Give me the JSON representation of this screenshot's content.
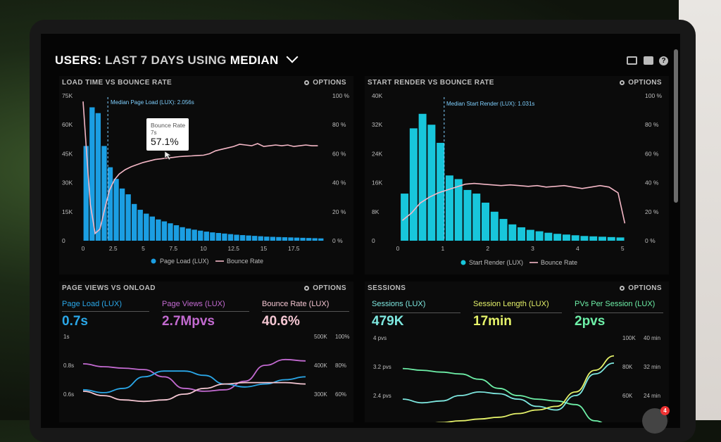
{
  "header": {
    "title_prefix": "USERS:",
    "title_middle": "LAST 7 DAYS USING",
    "title_suffix": "MEDIAN"
  },
  "toolbar": {
    "icons": [
      "monitor-icon",
      "share-icon",
      "help-icon"
    ],
    "help_glyph": "?"
  },
  "panels": {
    "load": {
      "title": "LOAD TIME VS BOUNCE RATE",
      "options": "OPTIONS",
      "median_label": "Median Page Load (LUX): 2.056s",
      "tooltip_label": "Bounce Rate",
      "tooltip_sub": "7s",
      "tooltip_value": "57.1%",
      "legend": [
        "Page Load (LUX)",
        "Bounce Rate"
      ]
    },
    "render": {
      "title": "START RENDER VS BOUNCE RATE",
      "options": "OPTIONS",
      "median_label": "Median Start Render (LUX): 1.031s",
      "legend": [
        "Start Render (LUX)",
        "Bounce Rate"
      ]
    },
    "pageviews": {
      "title": "PAGE VIEWS VS ONLOAD",
      "options": "OPTIONS",
      "metrics": [
        {
          "label": "Page Load (LUX)",
          "value": "0.7s",
          "color": "#2aa7e8"
        },
        {
          "label": "Page Views (LUX)",
          "value": "2.7Mpvs",
          "color": "#c26ad0"
        },
        {
          "label": "Bounce Rate (LUX)",
          "value": "40.6%",
          "color": "#f4c6d2"
        }
      ]
    },
    "sessions": {
      "title": "SESSIONS",
      "options": "OPTIONS",
      "metrics": [
        {
          "label": "Sessions (LUX)",
          "value": "479K",
          "color": "#7ee8e0"
        },
        {
          "label": "Session Length (LUX)",
          "value": "17min",
          "color": "#e6f36a"
        },
        {
          "label": "PVs Per Session (LUX)",
          "value": "2pvs",
          "color": "#6ef0a8"
        }
      ]
    }
  },
  "chart_data": [
    {
      "type": "bar",
      "title": "LOAD TIME VS BOUNCE RATE",
      "x_ticks": [
        "0",
        "2.5",
        "5",
        "7.5",
        "10",
        "12.5",
        "15",
        "17.5"
      ],
      "x_range": [
        0,
        20
      ],
      "y_left_ticks": [
        "0",
        "15K",
        "30K",
        "45K",
        "60K",
        "75K"
      ],
      "ylim": [
        0,
        75000
      ],
      "y_right_ticks": [
        "0 %",
        "20 %",
        "40 %",
        "60 %",
        "80 %",
        "100 %"
      ],
      "y2lim": [
        0,
        100
      ],
      "median_x": 2.056,
      "bar_color": "#1b9ee2",
      "line_color": "#f4b7c6",
      "series": [
        {
          "name": "Page Load (LUX)",
          "x": [
            0.25,
            0.75,
            1.25,
            1.75,
            2.25,
            2.75,
            3.25,
            3.75,
            4.25,
            4.75,
            5.25,
            5.75,
            6.25,
            6.75,
            7.25,
            7.75,
            8.25,
            8.75,
            9.25,
            9.75,
            10.25,
            10.75,
            11.25,
            11.75,
            12.25,
            12.75,
            13.25,
            13.75,
            14.25,
            14.75,
            15.25,
            15.75,
            16.25,
            16.75,
            17.25,
            17.75,
            18.25,
            18.75,
            19.25,
            19.75
          ],
          "values": [
            49000,
            69000,
            66000,
            49000,
            38000,
            32000,
            27000,
            24000,
            19000,
            16000,
            14000,
            12500,
            11000,
            10000,
            9000,
            8000,
            7000,
            6300,
            5700,
            5200,
            4700,
            4300,
            4000,
            3700,
            3400,
            3100,
            2900,
            2700,
            2500,
            2300,
            2100,
            2000,
            1900,
            1800,
            1700,
            1600,
            1500,
            1400,
            1300,
            1200
          ]
        },
        {
          "name": "Bounce Rate",
          "x": [
            0.0,
            0.3,
            0.6,
            1.0,
            1.4,
            1.8,
            2.2,
            2.6,
            3.0,
            3.5,
            4.0,
            4.5,
            5.0,
            5.5,
            6.0,
            6.5,
            7.0,
            7.5,
            8.0,
            8.5,
            9.0,
            9.5,
            10.0,
            10.5,
            11.0,
            11.5,
            12.0,
            12.5,
            13.0,
            13.5,
            14.0,
            14.5,
            15.0,
            15.5,
            16.0,
            16.5,
            17.0,
            17.5,
            18.0,
            18.5,
            19.0,
            19.5
          ],
          "values": [
            96,
            60,
            25,
            5,
            8,
            22,
            35,
            42,
            46,
            49,
            51,
            52.5,
            54,
            55,
            56,
            56.5,
            57.1,
            57.5,
            58,
            58.3,
            58.5,
            58.8,
            59,
            60,
            62,
            63,
            64,
            65,
            66.5,
            66,
            65.5,
            67,
            65,
            65.5,
            66,
            65.5,
            66,
            65,
            65.5,
            66,
            65.5,
            65.5
          ]
        }
      ]
    },
    {
      "type": "bar",
      "title": "START RENDER VS BOUNCE RATE",
      "x_ticks": [
        "0",
        "1",
        "2",
        "3",
        "4",
        "5"
      ],
      "x_range": [
        0,
        5.2
      ],
      "y_left_ticks": [
        "0",
        "8K",
        "16K",
        "24K",
        "32K",
        "40K"
      ],
      "ylim": [
        0,
        40000
      ],
      "y_right_ticks": [
        "0 %",
        "20 %",
        "40 %",
        "60 %",
        "80 %",
        "100 %"
      ],
      "y2lim": [
        0,
        100
      ],
      "median_x": 1.031,
      "bar_color": "#18c6db",
      "line_color": "#f4b7c6",
      "series": [
        {
          "name": "Start Render (LUX)",
          "x": [
            0.15,
            0.35,
            0.55,
            0.75,
            0.95,
            1.15,
            1.35,
            1.55,
            1.75,
            1.95,
            2.15,
            2.35,
            2.55,
            2.75,
            2.95,
            3.15,
            3.35,
            3.55,
            3.75,
            3.95,
            4.15,
            4.35,
            4.55,
            4.75,
            4.95
          ],
          "values": [
            13000,
            31000,
            35000,
            32000,
            27000,
            18000,
            17000,
            14000,
            13000,
            10500,
            8000,
            6000,
            4500,
            3700,
            3000,
            2600,
            2200,
            1900,
            1700,
            1500,
            1300,
            1200,
            1100,
            1000,
            900
          ]
        },
        {
          "name": "Bounce Rate",
          "x": [
            0.1,
            0.3,
            0.5,
            0.7,
            0.9,
            1.1,
            1.3,
            1.5,
            1.7,
            1.9,
            2.1,
            2.3,
            2.5,
            2.7,
            2.9,
            3.1,
            3.3,
            3.5,
            3.7,
            3.9,
            4.1,
            4.3,
            4.5,
            4.7,
            4.9,
            5.05
          ],
          "values": [
            14,
            19,
            26,
            30,
            33,
            35,
            37,
            39,
            39.5,
            39,
            38.5,
            38,
            38.5,
            38,
            37.5,
            38,
            37,
            37.5,
            38,
            37,
            36,
            37,
            38,
            37,
            33,
            12
          ]
        }
      ]
    },
    {
      "type": "line",
      "title": "PAGE VIEWS VS ONLOAD",
      "y_left_ticks": [
        "1s",
        "0.8s",
        "0.6s"
      ],
      "y_right_ticks_a": [
        "500K",
        "400K",
        "300K"
      ],
      "y_right_ticks_b": [
        "100%",
        "80%",
        "60%"
      ],
      "series": [
        {
          "name": "Page Views (LUX)",
          "values": [
            0.81,
            0.79,
            0.78,
            0.77,
            0.72,
            0.64,
            0.62,
            0.63,
            0.69,
            0.8,
            0.84,
            0.83
          ],
          "color": "#c26ad0"
        },
        {
          "name": "Page Load (LUX)",
          "values": [
            0.63,
            0.61,
            0.64,
            0.72,
            0.76,
            0.76,
            0.73,
            0.67,
            0.65,
            0.67,
            0.7,
            0.72
          ],
          "color": "#2aa7e8"
        },
        {
          "name": "Bounce Rate (LUX)",
          "values": [
            0.62,
            0.59,
            0.56,
            0.55,
            0.56,
            0.6,
            0.64,
            0.67,
            0.68,
            0.68,
            0.68,
            0.67
          ],
          "color": "#f4c6d2"
        }
      ]
    },
    {
      "type": "line",
      "title": "SESSIONS",
      "y_left_ticks": [
        "4 pvs",
        "3.2 pvs",
        "2.4 pvs"
      ],
      "y_right_ticks_a": [
        "100K",
        "80K",
        "60K"
      ],
      "y_right_ticks_b": [
        "40 min",
        "32 min",
        "24 min"
      ],
      "series": [
        {
          "name": "PVs Per Session (LUX)",
          "values": [
            3.15,
            3.1,
            3.05,
            3.0,
            2.85,
            2.6,
            2.4,
            2.3,
            2.25,
            2.15,
            1.7,
            1.5
          ],
          "color": "#6ef0a8"
        },
        {
          "name": "Sessions (LUX)",
          "values": [
            2.3,
            2.2,
            2.25,
            2.4,
            2.5,
            2.45,
            2.3,
            2.1,
            2.0,
            2.4,
            3.0,
            3.3
          ],
          "color": "#7ee8e0"
        },
        {
          "name": "Session Length (LUX)",
          "values": [
            1.6,
            1.6,
            1.65,
            1.7,
            1.75,
            1.8,
            1.9,
            2.0,
            2.1,
            2.5,
            3.1,
            3.5
          ],
          "color": "#e6f36a"
        }
      ]
    }
  ]
}
